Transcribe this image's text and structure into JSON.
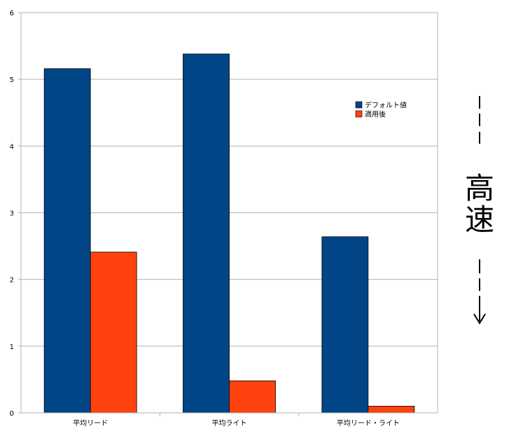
{
  "chart_data": {
    "type": "bar",
    "categories": [
      "平均リード",
      "平均ライト",
      "平均リード・ライト"
    ],
    "series": [
      {
        "name": "デフォルト値",
        "color": "#004586",
        "values": [
          5.16,
          5.38,
          2.64
        ]
      },
      {
        "name": "適用後",
        "color": "#ff420e",
        "values": [
          2.41,
          0.48,
          0.1
        ]
      }
    ],
    "ylim": [
      0,
      6
    ],
    "yticks": [
      0,
      1,
      2,
      3,
      4,
      5,
      6
    ],
    "grid": true,
    "legend_position": "top-right",
    "title": "",
    "xlabel": "",
    "ylabel": ""
  },
  "annotation": {
    "text_top": "高",
    "text_bottom": "速",
    "arrow": "dashed-down-arrow"
  }
}
